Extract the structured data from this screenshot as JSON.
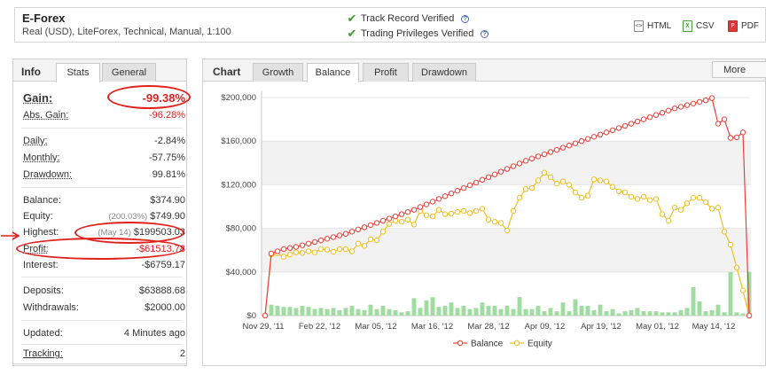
{
  "header": {
    "name": "E-Forex",
    "subtitle": "Real (USD), LiteForex, Technical, Manual, 1:100",
    "verified": [
      {
        "label": "Track Record Verified",
        "help": "?"
      },
      {
        "label": "Trading Privileges Verified",
        "help": "?"
      }
    ],
    "exports": [
      {
        "label": "HTML",
        "icon": "html-file-icon",
        "glyph": "<>"
      },
      {
        "label": "CSV",
        "icon": "csv-file-icon",
        "glyph": "X"
      },
      {
        "label": "PDF",
        "icon": "pdf-file-icon",
        "glyph": "P"
      }
    ]
  },
  "info": {
    "title": "Info",
    "tabs": [
      {
        "label": "Stats",
        "active": true
      },
      {
        "label": "General",
        "active": false
      }
    ],
    "gain": {
      "label": "Gain:",
      "value": "-99.38%"
    },
    "abs_gain": {
      "label": "Abs. Gain:",
      "value": "-96.28%"
    },
    "daily": {
      "label": "Daily:",
      "value": "-2.84%"
    },
    "monthly": {
      "label": "Monthly:",
      "value": "-57.75%"
    },
    "drawdown": {
      "label": "Drawdown:",
      "value": "99.81%"
    },
    "balance": {
      "label": "Balance:",
      "value": "$374.90"
    },
    "equity": {
      "label": "Equity:",
      "note": "(200.03%)",
      "value": "$749.90"
    },
    "highest": {
      "label": "Highest:",
      "note": "(May 14)",
      "value": "$199503.03"
    },
    "profit": {
      "label": "Profit:",
      "value": "-$61513.78"
    },
    "interest": {
      "label": "Interest:",
      "value": "-$6759.17"
    },
    "deposits": {
      "label": "Deposits:",
      "value": "$63888.68"
    },
    "withdrawals": {
      "label": "Withdrawals:",
      "value": "$2000.00"
    },
    "updated": {
      "label": "Updated:",
      "value": "4 Minutes ago"
    },
    "tracking": {
      "label": "Tracking:",
      "value": "2"
    }
  },
  "chart_panel": {
    "title": "Chart",
    "tabs": [
      {
        "label": "Growth",
        "active": false
      },
      {
        "label": "Balance",
        "active": true
      },
      {
        "label": "Profit",
        "active": false
      },
      {
        "label": "Drawdown",
        "active": false
      }
    ],
    "more": "More"
  },
  "chart_data": {
    "type": "line",
    "ylim": [
      0,
      200000
    ],
    "yticks": [
      "$0",
      "$40,000",
      "$80,000",
      "$120,000",
      "$160,000",
      "$200,000"
    ],
    "xticks": [
      "Nov 29, '11",
      "Feb 22, '12",
      "Mar 05, '12",
      "Mar 16, '12",
      "Mar 28, '12",
      "Apr 09, '12",
      "Apr 19, '12",
      "May 01, '12",
      "May 14, '12"
    ],
    "legend": "bottom",
    "colors": {
      "balance": "#e8403a",
      "equity": "#f0c020",
      "volume": "#9fdc9f"
    },
    "series": [
      {
        "name": "Balance",
        "values": [
          0,
          57000,
          59000,
          61000,
          62000,
          63000,
          64500,
          66000,
          67500,
          69000,
          70500,
          72000,
          73500,
          75000,
          77000,
          79000,
          81000,
          83000,
          85000,
          87000,
          89000,
          91000,
          93000,
          95000,
          97000,
          99500,
          102000,
          104500,
          107000,
          109500,
          112000,
          114500,
          117000,
          119500,
          122000,
          124500,
          127000,
          129500,
          132000,
          134500,
          137000,
          139500,
          142000,
          144000,
          146000,
          148000,
          150000,
          152000,
          154000,
          156000,
          158000,
          160000,
          162000,
          164000,
          166000,
          168000,
          170000,
          172000,
          174000,
          176000,
          178000,
          180000,
          182000,
          184000,
          186000,
          188000,
          190000,
          191500,
          193000,
          194500,
          196000,
          197500,
          199500,
          176000,
          180000,
          163000,
          163500,
          168000,
          0
        ]
      },
      {
        "name": "Equity",
        "values": [
          0,
          56000,
          57000,
          54000,
          56000,
          58000,
          57500,
          59000,
          58000,
          61000,
          60500,
          58500,
          61000,
          61000,
          59000,
          66000,
          64000,
          70000,
          69000,
          77000,
          84000,
          87000,
          86000,
          88000,
          83500,
          96000,
          92000,
          91000,
          97000,
          93000,
          93500,
          95000,
          96000,
          94000,
          96000,
          98000,
          88000,
          86000,
          85000,
          78000,
          96000,
          108000,
          116000,
          117000,
          124000,
          131000,
          127000,
          121000,
          123000,
          120000,
          113000,
          108000,
          110000,
          125000,
          124000,
          123000,
          118000,
          114000,
          113000,
          109000,
          107000,
          109000,
          106000,
          107000,
          93000,
          87000,
          99000,
          97000,
          103000,
          108000,
          108000,
          104000,
          98000,
          99000,
          77000,
          65000,
          44000,
          23000,
          0
        ]
      },
      {
        "name": "Deposits",
        "values": [
          0,
          10000,
          9000,
          8000,
          8000,
          7000,
          9000,
          8000,
          6000,
          7000,
          6000,
          7000,
          5000,
          7000,
          9000,
          6000,
          5000,
          10000,
          6000,
          9000,
          6000,
          5000,
          3000,
          4000,
          16000,
          7000,
          14000,
          17000,
          8000,
          9000,
          12000,
          7000,
          9000,
          6000,
          7000,
          12000,
          9000,
          9000,
          6000,
          9000,
          6000,
          17000,
          6000,
          6000,
          9000,
          4000,
          7000,
          4000,
          12000,
          4000,
          15000,
          9000,
          9000,
          5000,
          10000,
          4000,
          6000,
          2000,
          4000,
          5000,
          7000,
          4000,
          4000,
          4000,
          3000,
          3000,
          3000,
          5000,
          7000,
          26000,
          13000,
          4000,
          5000,
          10000,
          3000,
          40000,
          3000,
          2000,
          40000
        ]
      }
    ]
  }
}
